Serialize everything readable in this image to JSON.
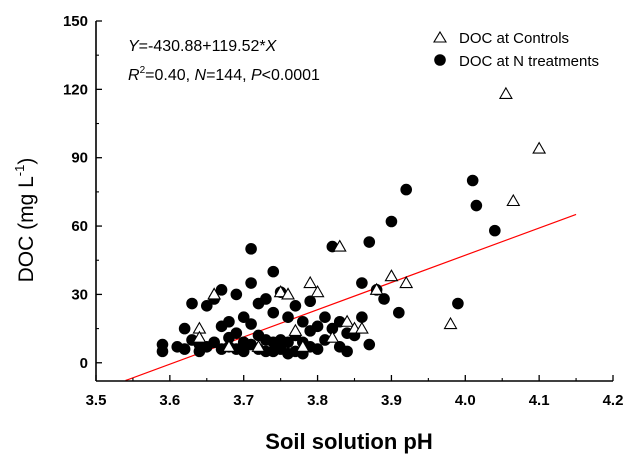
{
  "chart_data": {
    "type": "scatter",
    "xlabel": "Soil solution pH",
    "ylabel": "DOC (mg L",
    "ylabel_sup": "-1",
    "ylabel_close": ")",
    "xlim": [
      3.5,
      4.2
    ],
    "ylim": [
      -8,
      150
    ],
    "xticks": [
      3.5,
      3.6,
      3.7,
      3.8,
      3.9,
      4.0,
      4.1,
      4.2
    ],
    "xtick_labels": [
      "3.5",
      "3.6",
      "3.7",
      "3.8",
      "3.9",
      "4.0",
      "4.1",
      "4.2"
    ],
    "yticks": [
      0,
      30,
      60,
      90,
      120,
      150
    ],
    "ytick_labels": [
      "0",
      "30",
      "60",
      "90",
      "120",
      "150"
    ],
    "grid": false,
    "legend_position": "top-right",
    "annotation": {
      "line1": {
        "y": "Y",
        "eq": "=-430.88+119.52*",
        "x": "X"
      },
      "line2": {
        "r": "R",
        "sup": "2",
        "rest1": "=0.40, ",
        "n": "N",
        "rest2": "=144, ",
        "p": "P",
        "rest3": "<0.0001"
      }
    },
    "regression": {
      "intercept": -430.88,
      "slope": 119.52,
      "x_range": [
        3.54,
        4.15
      ],
      "color": "#ff0000"
    },
    "series": [
      {
        "name": "DOC at Controls",
        "marker": "open-triangle",
        "color": "#000000",
        "x": [
          3.64,
          3.64,
          3.66,
          3.68,
          3.72,
          3.75,
          3.76,
          3.77,
          3.78,
          3.79,
          3.8,
          3.82,
          3.83,
          3.84,
          3.85,
          3.86,
          3.88,
          3.9,
          3.92,
          3.98,
          4.055,
          4.065,
          4.1
        ],
        "y": [
          15,
          11,
          30,
          7,
          7,
          31,
          30,
          14,
          7,
          35,
          31,
          11,
          51,
          18,
          15,
          15,
          32,
          38,
          35,
          17,
          118,
          71,
          94
        ]
      },
      {
        "name": "DOC at N treatments",
        "marker": "filled-circle",
        "color": "#000000",
        "x": [
          3.59,
          3.59,
          3.61,
          3.62,
          3.62,
          3.63,
          3.63,
          3.64,
          3.64,
          3.65,
          3.65,
          3.66,
          3.66,
          3.67,
          3.67,
          3.67,
          3.68,
          3.68,
          3.68,
          3.69,
          3.69,
          3.69,
          3.7,
          3.7,
          3.7,
          3.71,
          3.71,
          3.71,
          3.71,
          3.72,
          3.72,
          3.72,
          3.73,
          3.73,
          3.73,
          3.74,
          3.74,
          3.74,
          3.74,
          3.75,
          3.75,
          3.75,
          3.76,
          3.76,
          3.76,
          3.77,
          3.77,
          3.77,
          3.78,
          3.78,
          3.78,
          3.79,
          3.79,
          3.79,
          3.8,
          3.8,
          3.81,
          3.81,
          3.82,
          3.82,
          3.83,
          3.83,
          3.84,
          3.84,
          3.85,
          3.86,
          3.86,
          3.87,
          3.87,
          3.88,
          3.89,
          3.9,
          3.91,
          3.92,
          3.99,
          4.01,
          4.015,
          4.04
        ],
        "y": [
          8,
          5,
          7,
          15,
          6,
          10,
          26,
          8,
          5,
          25,
          7,
          28,
          9,
          32,
          16,
          6,
          18,
          11,
          7,
          30,
          13,
          6,
          20,
          9,
          5,
          50,
          35,
          17,
          8,
          26,
          12,
          6,
          28,
          10,
          5,
          40,
          22,
          9,
          5,
          31,
          10,
          6,
          20,
          9,
          4,
          25,
          12,
          5,
          18,
          9,
          4,
          27,
          14,
          7,
          16,
          6,
          20,
          10,
          51,
          15,
          18,
          7,
          13,
          5,
          12,
          35,
          20,
          53,
          8,
          32,
          28,
          62,
          22,
          76,
          26,
          80,
          69,
          58
        ]
      }
    ]
  }
}
